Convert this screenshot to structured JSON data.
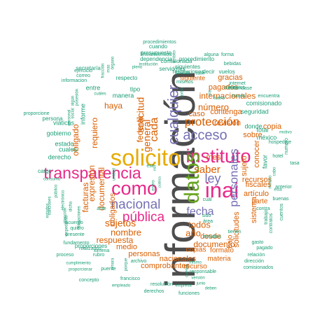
{
  "palette": {
    "gray": "#4d4d4d",
    "magenta": "#e7298a",
    "gold": "#e6ab02",
    "purple": "#7570b3",
    "green": "#66a61e",
    "orange": "#d95f02",
    "teal": "#1b9e77"
  },
  "words": [
    {
      "text": "información",
      "color": "gray"
    },
    {
      "text": "solicito",
      "color": "gold"
    },
    {
      "text": "transparencia",
      "color": "magenta"
    },
    {
      "text": "instituto",
      "color": "magenta"
    },
    {
      "text": "inai",
      "color": "magenta"
    },
    {
      "text": "como",
      "color": "magenta"
    },
    {
      "text": "datos",
      "color": "green"
    },
    {
      "text": "personales",
      "color": "purple"
    },
    {
      "text": "nacional",
      "color": "purple"
    },
    {
      "text": "cualquier",
      "color": "purple"
    },
    {
      "text": "acceso",
      "color": "purple"
    },
    {
      "text": "ley",
      "color": "purple"
    },
    {
      "text": "fecha",
      "color": "purple"
    },
    {
      "text": "pública",
      "color": "magenta"
    },
    {
      "text": "protección",
      "color": "orange"
    },
    {
      "text": "cada",
      "color": "orange"
    },
    {
      "text": "saber",
      "color": "orange"
    },
    {
      "text": "internacionales",
      "color": "orange"
    },
    {
      "text": "número",
      "color": "orange"
    },
    {
      "text": "sujetos",
      "color": "orange"
    },
    {
      "text": "nombre",
      "color": "orange"
    },
    {
      "text": "todos",
      "color": "orange"
    },
    {
      "text": "documento",
      "color": "orange"
    },
    {
      "text": "año",
      "color": "orange"
    },
    {
      "text": "caso",
      "color": "orange"
    },
    {
      "text": "contenga",
      "color": "orange"
    },
    {
      "text": "general",
      "color": "orange"
    },
    {
      "text": "solicitud",
      "color": "orange"
    },
    {
      "text": "federal",
      "color": "orange"
    },
    {
      "text": "respuesta",
      "color": "orange"
    },
    {
      "text": "documental",
      "color": "orange"
    },
    {
      "text": "expresión",
      "color": "orange"
    },
    {
      "text": "facturas",
      "color": "orange"
    },
    {
      "text": "obligado",
      "color": "orange"
    },
    {
      "text": "requiero",
      "color": "orange"
    },
    {
      "text": "haya",
      "color": "orange"
    },
    {
      "text": "medio",
      "color": "orange"
    },
    {
      "text": "obligados",
      "color": "orange"
    },
    {
      "text": "copias",
      "color": "orange"
    },
    {
      "text": "desde",
      "color": "orange"
    },
    {
      "text": "revisión",
      "color": "orange"
    },
    {
      "text": "solicitudes",
      "color": "orange"
    },
    {
      "text": "sujeto",
      "color": "orange"
    },
    {
      "text": "recursos",
      "color": "orange"
    },
    {
      "text": "artículo",
      "color": "orange"
    },
    {
      "text": "fiscales",
      "color": "orange"
    },
    {
      "text": "conocer",
      "color": "orange"
    },
    {
      "text": "sobre",
      "color": "orange"
    },
    {
      "text": "comprobantes",
      "color": "orange"
    },
    {
      "text": "nacionales",
      "color": "orange"
    },
    {
      "text": "personas",
      "color": "orange"
    },
    {
      "text": "gracias",
      "color": "orange"
    },
    {
      "text": "pagados",
      "color": "orange"
    },
    {
      "text": "copia",
      "color": "orange"
    },
    {
      "text": "sistema",
      "color": "orange"
    },
    {
      "text": "parte",
      "color": "orange"
    },
    {
      "text": "mes",
      "color": "orange"
    },
    {
      "text": "materia",
      "color": "orange"
    },
    {
      "text": "bajo",
      "color": "orange"
    },
    {
      "text": "formato",
      "color": "orange"
    },
    {
      "text": "recurso",
      "color": "orange"
    },
    {
      "text": "siguiente",
      "color": "orange"
    },
    {
      "text": "seguridad",
      "color": "teal"
    },
    {
      "text": "comisionado",
      "color": "teal"
    },
    {
      "text": "donde",
      "color": "teal"
    },
    {
      "text": "total",
      "color": "teal"
    },
    {
      "text": "méxico",
      "color": "teal"
    },
    {
      "text": "favor",
      "color": "teal"
    },
    {
      "text": "tipo",
      "color": "teal"
    },
    {
      "text": "manera",
      "color": "teal"
    },
    {
      "text": "entre",
      "color": "teal"
    },
    {
      "text": "informe",
      "color": "teal"
    },
    {
      "text": "estado",
      "color": "teal"
    },
    {
      "text": "derecho",
      "color": "teal"
    },
    {
      "text": "cuales",
      "color": "teal"
    },
    {
      "text": "viáticos",
      "color": "teal"
    },
    {
      "text": "gobierno",
      "color": "teal"
    },
    {
      "text": "persona",
      "color": "teal"
    },
    {
      "text": "cargo",
      "color": "teal"
    },
    {
      "text": "proporcione",
      "color": "teal"
    },
    {
      "text": "proporciones",
      "color": "teal"
    },
    {
      "text": "informacion",
      "color": "teal"
    },
    {
      "text": "ejercicio",
      "color": "teal"
    },
    {
      "text": "secretaría",
      "color": "teal"
    },
    {
      "text": "correo",
      "color": "teal"
    },
    {
      "text": "cuando",
      "color": "teal"
    },
    {
      "text": "presupuesto",
      "color": "teal"
    },
    {
      "text": "procedimientos",
      "color": "teal"
    },
    {
      "text": "lineamientos",
      "color": "teal"
    },
    {
      "text": "dependencia",
      "color": "teal"
    },
    {
      "text": "comisionada",
      "color": "teal"
    },
    {
      "text": "procedimiento",
      "color": "teal"
    },
    {
      "text": "siguientes",
      "color": "teal"
    },
    {
      "text": "servidores",
      "color": "teal"
    },
    {
      "text": "resoluciones",
      "color": "teal"
    },
    {
      "text": "respecto",
      "color": "teal"
    },
    {
      "text": "solicita",
      "color": "teal"
    },
    {
      "text": "decir",
      "color": "teal"
    },
    {
      "text": "vuelos",
      "color": "teal"
    },
    {
      "text": "internet",
      "color": "teal"
    },
    {
      "text": "alimentos",
      "color": "teal"
    },
    {
      "text": "bebidas",
      "color": "teal"
    },
    {
      "text": "alguna",
      "color": "teal"
    },
    {
      "text": "forma",
      "color": "teal"
    },
    {
      "text": "entiéndase",
      "color": "teal"
    },
    {
      "text": "través",
      "color": "teal"
    },
    {
      "text": "encuentra",
      "color": "teal"
    },
    {
      "text": "fuero",
      "color": "teal"
    },
    {
      "text": "mismos",
      "color": "teal"
    },
    {
      "text": "hotel",
      "color": "teal"
    },
    {
      "text": "hospedaje",
      "color": "teal"
    },
    {
      "text": "numero",
      "color": "teal"
    },
    {
      "text": "anterior",
      "color": "teal"
    },
    {
      "text": "buenas",
      "color": "teal"
    },
    {
      "text": "contra",
      "color": "teal"
    },
    {
      "text": "cuentos",
      "color": "teal"
    },
    {
      "text": "trabajo",
      "color": "teal"
    },
    {
      "text": "contratos",
      "color": "teal"
    },
    {
      "text": "dirección",
      "color": "teal"
    },
    {
      "text": "relación",
      "color": "teal"
    },
    {
      "text": "comisionados",
      "color": "teal"
    },
    {
      "text": "pagado",
      "color": "teal"
    },
    {
      "text": "gasto",
      "color": "teal"
    },
    {
      "text": "tienen",
      "color": "teal"
    },
    {
      "text": "estudios",
      "color": "teal"
    },
    {
      "text": "área",
      "color": "teal"
    },
    {
      "text": "sido",
      "color": "teal"
    },
    {
      "text": "cuál",
      "color": "teal"
    },
    {
      "text": "enero",
      "color": "teal"
    },
    {
      "text": "esa",
      "color": "teal"
    },
    {
      "text": "ese",
      "color": "teal"
    },
    {
      "text": "ante",
      "color": "teal"
    },
    {
      "text": "acuerdo",
      "color": "teal"
    },
    {
      "text": "quiero",
      "color": "teal"
    },
    {
      "text": "presente",
      "color": "teal"
    },
    {
      "text": "fundamento",
      "color": "teal"
    },
    {
      "text": "realizados",
      "color": "teal"
    },
    {
      "text": "rubro",
      "color": "teal"
    },
    {
      "text": "ximena",
      "color": "teal"
    },
    {
      "text": "proceso",
      "color": "teal"
    },
    {
      "text": "cumplimiento",
      "color": "teal"
    },
    {
      "text": "proporcionar",
      "color": "teal"
    },
    {
      "text": "puente",
      "color": "teal"
    },
    {
      "text": "archivo",
      "color": "teal"
    },
    {
      "text": "concepto",
      "color": "teal"
    },
    {
      "text": "francisco",
      "color": "teal"
    },
    {
      "text": "resolución",
      "color": "teal"
    },
    {
      "text": "empleado",
      "color": "teal"
    },
    {
      "text": "derechos",
      "color": "teal"
    },
    {
      "text": "empresa",
      "color": "teal"
    },
    {
      "text": "junio",
      "color": "teal"
    },
    {
      "text": "deben",
      "color": "teal"
    },
    {
      "text": "funciones",
      "color": "teal"
    },
    {
      "text": "responsable",
      "color": "teal"
    },
    {
      "text": "versión",
      "color": "teal"
    },
    {
      "text": "mismo",
      "color": "teal"
    },
    {
      "text": "cuenta",
      "color": "teal"
    },
    {
      "text": "consumo",
      "color": "teal"
    },
    {
      "text": "estados",
      "color": "teal"
    },
    {
      "text": "sanciones",
      "color": "teal"
    },
    {
      "text": "social",
      "color": "teal"
    },
    {
      "text": "personal",
      "color": "teal"
    },
    {
      "text": "algún",
      "color": "teal"
    },
    {
      "text": "posesión",
      "color": "teal"
    },
    {
      "text": "cuáles",
      "color": "teal"
    },
    {
      "text": "fracción",
      "color": "teal"
    },
    {
      "text": "mas",
      "color": "teal"
    },
    {
      "text": "órgano",
      "color": "teal"
    },
    {
      "text": "institución",
      "color": "teal"
    },
    {
      "text": "pleno",
      "color": "teal"
    },
    {
      "text": "base",
      "color": "teal"
    },
    {
      "text": "motivo",
      "color": "teal"
    },
    {
      "text": "cabo",
      "color": "teal"
    },
    {
      "text": "mexico",
      "color": "teal"
    },
    {
      "text": "público",
      "color": "teal"
    },
    {
      "text": "electrónico",
      "color": "teal"
    },
    {
      "text": "dicha",
      "color": "teal"
    },
    {
      "text": "atención",
      "color": "teal"
    },
    {
      "text": "obligaciones",
      "color": "teal"
    },
    {
      "text": "expediente",
      "color": "teal"
    },
    {
      "text": "porque",
      "color": "teal"
    },
    {
      "text": "unidad",
      "color": "teal"
    },
    {
      "text": "pública",
      "color": "teal"
    },
    {
      "text": "tasa",
      "color": "teal"
    },
    {
      "text": "ámbito",
      "color": "teal"
    },
    {
      "text": "vía",
      "color": "teal"
    },
    {
      "text": "emora",
      "color": "teal"
    },
    {
      "text": "aviso",
      "color": "teal"
    },
    {
      "text": "esta",
      "color": "teal"
    },
    {
      "text": "hasta",
      "color": "teal"
    },
    {
      "text": "fuera",
      "color": "teal"
    },
    {
      "text": "todas",
      "color": "teal"
    }
  ]
}
